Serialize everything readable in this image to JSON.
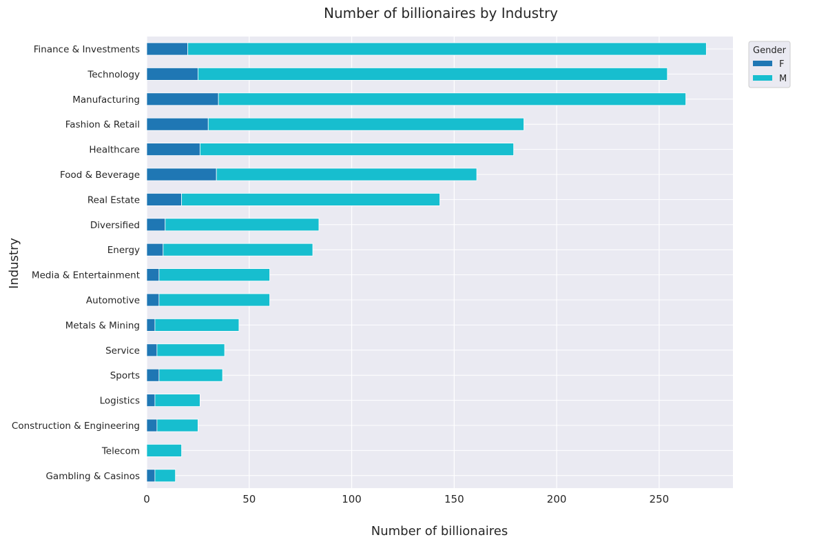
{
  "chart_data": {
    "type": "bar",
    "orientation": "horizontal",
    "stacked": true,
    "title": "Number of billionaires by Industry",
    "xlabel": "Number of billionaires",
    "ylabel": "Industry",
    "xlim": [
      0,
      286
    ],
    "xticks": [
      0,
      50,
      100,
      150,
      200,
      250
    ],
    "grid": true,
    "legend_title": "Gender",
    "legend_position": "upper-right-outside",
    "categories": [
      "Finance & Investments",
      "Technology",
      "Manufacturing",
      "Fashion & Retail",
      "Healthcare",
      "Food & Beverage",
      "Real Estate",
      "Diversified",
      "Energy",
      "Media & Entertainment",
      "Automotive",
      "Metals & Mining",
      "Service",
      "Sports",
      "Logistics",
      "Construction & Engineering",
      "Telecom",
      "Gambling & Casinos"
    ],
    "series": [
      {
        "name": "F",
        "color": "#1f77b4",
        "values": [
          20,
          25,
          35,
          30,
          26,
          34,
          17,
          9,
          8,
          6,
          6,
          4,
          5,
          6,
          4,
          5,
          0,
          4
        ]
      },
      {
        "name": "M",
        "color": "#17becf",
        "values": [
          253,
          229,
          228,
          154,
          153,
          127,
          126,
          75,
          73,
          54,
          54,
          41,
          33,
          31,
          22,
          20,
          17,
          10
        ]
      }
    ]
  },
  "colors": {
    "plot_bg": "#eaeaf2",
    "grid": "#ffffff",
    "text": "#262626"
  }
}
